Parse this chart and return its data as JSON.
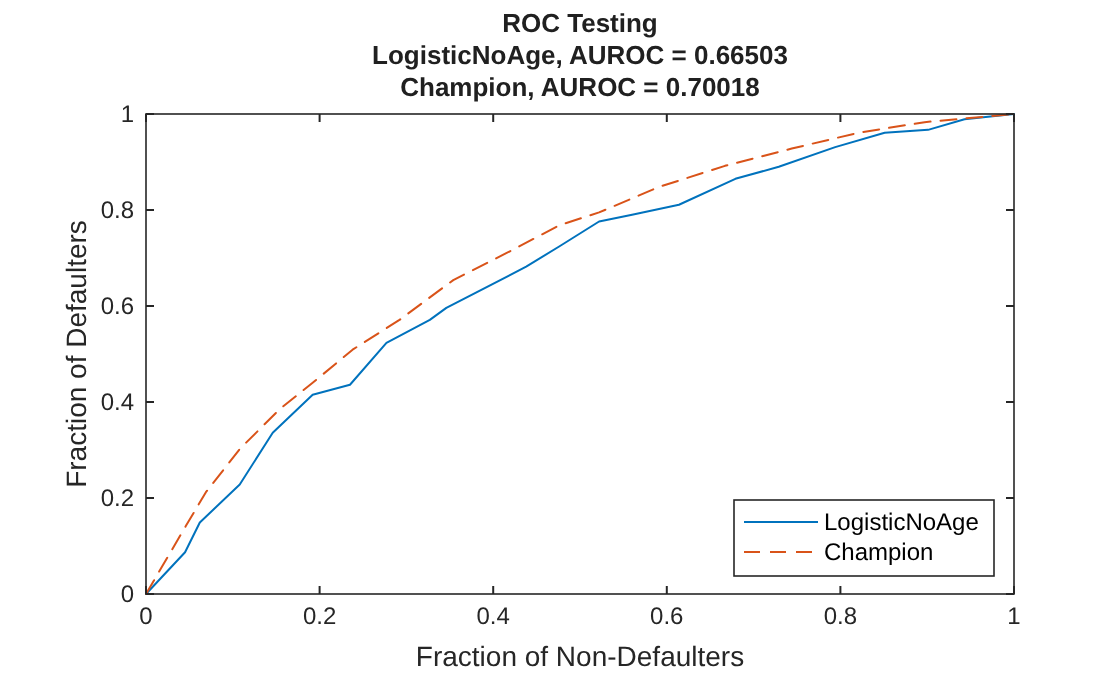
{
  "chart_data": {
    "type": "line",
    "title": "ROC Testing\nLogisticNoAge, AUROC = 0.66503\nChampion, AUROC = 0.70018",
    "xlabel": "Fraction of Non-Defaulters",
    "ylabel": "Fraction of Defaulters",
    "xlim": [
      0,
      1
    ],
    "ylim": [
      0,
      1
    ],
    "xticks": [
      0,
      0.2,
      0.4,
      0.6,
      0.8,
      1
    ],
    "yticks": [
      0,
      0.2,
      0.4,
      0.6,
      0.8,
      1
    ],
    "legend": "bottom right",
    "grid": false,
    "series": [
      {
        "name": "LogisticNoAge",
        "color": "#0072bd",
        "line_style": "solid",
        "x": [
          0,
          0.045,
          0.062,
          0.108,
          0.146,
          0.192,
          0.235,
          0.277,
          0.327,
          0.346,
          0.438,
          0.476,
          0.522,
          0.56,
          0.614,
          0.679,
          0.729,
          0.794,
          0.851,
          0.901,
          0.943,
          1
        ],
        "values": [
          0,
          0.087,
          0.149,
          0.228,
          0.336,
          0.415,
          0.436,
          0.523,
          0.571,
          0.596,
          0.682,
          0.724,
          0.776,
          0.79,
          0.811,
          0.865,
          0.89,
          0.931,
          0.961,
          0.967,
          0.989,
          1
        ]
      },
      {
        "name": "Champion",
        "color": "#d95319",
        "line_style": "dashed",
        "x": [
          0,
          0.046,
          0.069,
          0.108,
          0.154,
          0.192,
          0.238,
          0.292,
          0.354,
          0.415,
          0.476,
          0.522,
          0.591,
          0.667,
          0.744,
          0.821,
          0.897,
          1
        ],
        "values": [
          0,
          0.142,
          0.212,
          0.302,
          0.385,
          0.44,
          0.509,
          0.571,
          0.654,
          0.71,
          0.768,
          0.795,
          0.848,
          0.892,
          0.928,
          0.961,
          0.983,
          1
        ]
      }
    ]
  }
}
